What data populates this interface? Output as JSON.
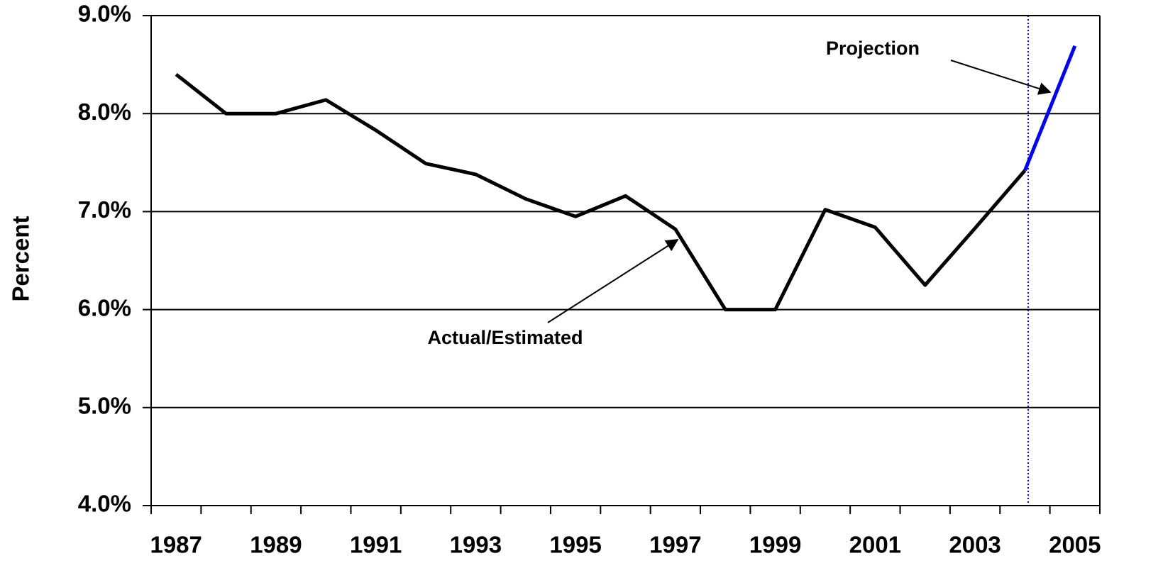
{
  "chart_data": {
    "type": "line",
    "y_label": "Percent",
    "categories": [
      "1987",
      null,
      "1989",
      null,
      "1991",
      null,
      "1993",
      null,
      "1995",
      null,
      "1997",
      null,
      "1999",
      null,
      "2001",
      null,
      "2003",
      null,
      "2005"
    ],
    "series": [
      {
        "name": "Actual/Estimated",
        "color": "#000000",
        "values": [
          8.4,
          8.0,
          8.0,
          8.14,
          7.83,
          7.49,
          7.38,
          7.13,
          6.95,
          7.16,
          6.82,
          6.0,
          6.0,
          7.02,
          6.84,
          6.25,
          6.83,
          7.42,
          null
        ]
      },
      {
        "name": "Projection",
        "color": "#0000ff",
        "values": [
          null,
          null,
          null,
          null,
          null,
          null,
          null,
          null,
          null,
          null,
          null,
          null,
          null,
          null,
          null,
          null,
          null,
          7.42,
          8.69
        ]
      }
    ],
    "ylim": [
      4,
      9
    ],
    "yticks": [
      {
        "value": 4,
        "label": "4.0%"
      },
      {
        "value": 5,
        "label": "5.0%"
      },
      {
        "value": 6,
        "label": "6.0%"
      },
      {
        "value": 7,
        "label": "7.0%"
      },
      {
        "value": 8,
        "label": "8.0%"
      },
      {
        "value": 9,
        "label": "9.0%"
      }
    ],
    "grid": true
  }
}
